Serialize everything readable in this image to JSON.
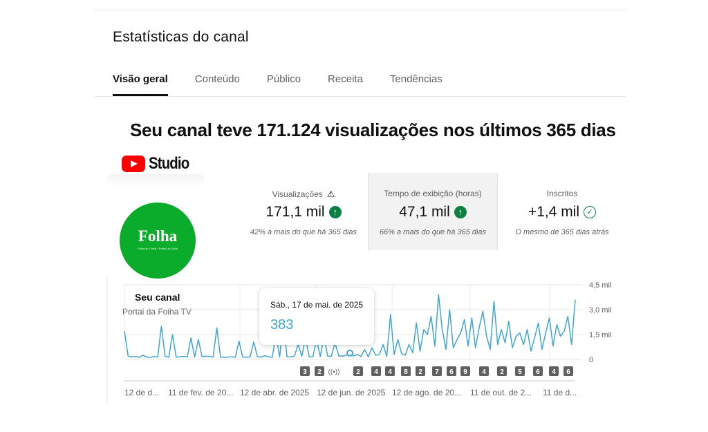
{
  "page": {
    "title": "Estatísticas do canal",
    "tabs": [
      {
        "label": "Visão geral",
        "active": true
      },
      {
        "label": "Conteúdo",
        "active": false
      },
      {
        "label": "Público",
        "active": false
      },
      {
        "label": "Receita",
        "active": false
      },
      {
        "label": "Tendências",
        "active": false
      }
    ],
    "headline": "Seu canal teve 171.124 visualizações nos últimos 365 dias"
  },
  "brand": {
    "logo_word": "Studio",
    "icon": "youtube-play-icon",
    "color": "#ff0000"
  },
  "channel": {
    "avatar_text": "Folha",
    "avatar_subtext": "Folha do Canal • Portal da Folha",
    "avatar_color": "#0bab2c",
    "name": "Seu canal",
    "handle": "Portal da Folha TV"
  },
  "stats": [
    {
      "label": "Visualizações",
      "label_icon": "warning-icon",
      "value": "171,1 mil",
      "value_icon": "arrow-up-icon",
      "sub": "42% a mais do que há 365 dias"
    },
    {
      "label": "Tempo de exibição (horas)",
      "value": "47,1 mil",
      "value_icon": "arrow-up-icon",
      "sub": "66% a mais do que há 365 dias"
    },
    {
      "label": "Inscritos",
      "value": "+1,4 mil",
      "value_icon": "check-circle-icon",
      "sub": "O mesmo de 365 dias atrás"
    }
  ],
  "tooltip": {
    "date": "Sáb., 17 de mai. de 2025",
    "value": "383"
  },
  "chart_data": {
    "type": "line",
    "series": [
      {
        "color": "#3ea6d4",
        "values": [
          1700,
          200,
          150,
          180,
          120,
          260,
          140,
          120,
          180,
          140,
          2000,
          200,
          130,
          1500,
          140,
          160,
          180,
          150,
          1300,
          140,
          1200,
          160,
          200,
          170,
          140,
          1900,
          150,
          120,
          140,
          160,
          130,
          1100,
          140,
          130,
          150,
          1050,
          160,
          140,
          220,
          150,
          130,
          1500,
          140,
          2300,
          160,
          150,
          200,
          900,
          180,
          1300,
          150,
          160,
          1200,
          170,
          1400,
          190,
          200,
          1000,
          220,
          190,
          250,
          383,
          210,
          300,
          180,
          600,
          150,
          700,
          250,
          300,
          900,
          180,
          2700,
          300,
          1200,
          350,
          250,
          900,
          400,
          2200,
          500,
          1800,
          1500,
          2600,
          800,
          3900,
          1800,
          600,
          3000,
          700,
          1200,
          1600,
          2400,
          800,
          2500,
          700,
          1900,
          2900,
          1400,
          600,
          3500,
          900,
          1800,
          1000,
          2300,
          700,
          1400,
          1600,
          900,
          1800,
          500,
          1300,
          2200,
          600,
          1600,
          2500,
          800,
          2100,
          1400,
          1700,
          2600,
          900,
          3600
        ]
      }
    ],
    "y_ticks": [
      "4,5 mil",
      "3,0 mil",
      "1,5 mil",
      "0"
    ],
    "ylim": [
      0,
      4500
    ],
    "x_tick_labels": [
      "12 de d...",
      "11 de fev. de 20...",
      "12 de abr. de 2025",
      "12 de jun. de 2025",
      "12 de ago. de 20...",
      "11 de out. de 2...",
      "11 de d..."
    ],
    "upload_markers": [
      "3",
      "2",
      "((•))",
      "2",
      "4",
      "4",
      "8",
      "2",
      "7",
      "6",
      "9",
      "4",
      "2",
      "5",
      "6",
      "4",
      "6"
    ],
    "highlight_index": 61
  }
}
